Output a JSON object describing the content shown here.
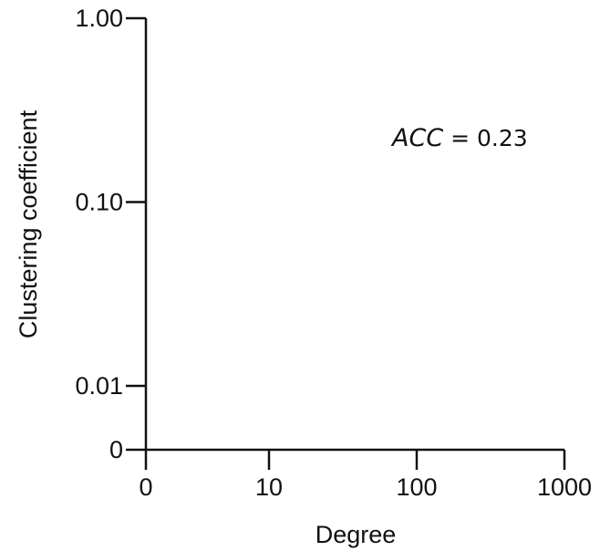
{
  "chart_data": {
    "type": "scatter",
    "title": "",
    "xlabel": "Degree",
    "ylabel": "Clustering coefficient",
    "x_scale": "log",
    "y_scale": "log",
    "x_ticks": [
      {
        "value": 0,
        "label": "0"
      },
      {
        "value": 10,
        "label": "10"
      },
      {
        "value": 100,
        "label": "100"
      },
      {
        "value": 1000,
        "label": "1000"
      }
    ],
    "y_ticks": [
      {
        "value": 0,
        "label": "0"
      },
      {
        "value": 0.01,
        "label": "0.01"
      },
      {
        "value": 0.1,
        "label": "0.10"
      },
      {
        "value": 1,
        "label": "1.00"
      }
    ],
    "series": [],
    "grid": false,
    "annotation": {
      "var": "ACC",
      "op": " = ",
      "value": "0.23"
    },
    "colors": {
      "axis": "#111111",
      "background": "#ffffff"
    }
  }
}
